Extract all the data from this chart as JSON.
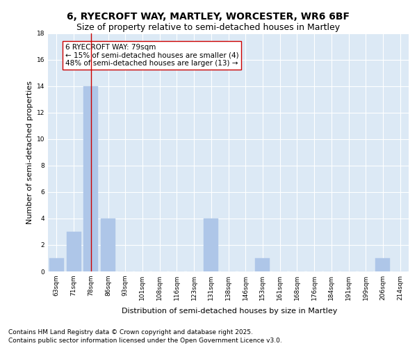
{
  "title1": "6, RYECROFT WAY, MARTLEY, WORCESTER, WR6 6BF",
  "title2": "Size of property relative to semi-detached houses in Martley",
  "xlabel": "Distribution of semi-detached houses by size in Martley",
  "ylabel": "Number of semi-detached properties",
  "categories": [
    "63sqm",
    "71sqm",
    "78sqm",
    "86sqm",
    "93sqm",
    "101sqm",
    "108sqm",
    "116sqm",
    "123sqm",
    "131sqm",
    "138sqm",
    "146sqm",
    "153sqm",
    "161sqm",
    "168sqm",
    "176sqm",
    "184sqm",
    "191sqm",
    "199sqm",
    "206sqm",
    "214sqm"
  ],
  "values": [
    1,
    3,
    14,
    4,
    0,
    0,
    0,
    0,
    0,
    4,
    0,
    0,
    1,
    0,
    0,
    0,
    0,
    0,
    0,
    1,
    0
  ],
  "bar_color": "#aec6e8",
  "bar_edge_color": "#aec6e8",
  "highlight_bar_index": 2,
  "highlight_line_color": "#cc0000",
  "annotation_text": "6 RYECROFT WAY: 79sqm\n← 15% of semi-detached houses are smaller (4)\n48% of semi-detached houses are larger (13) →",
  "annotation_box_color": "#ffffff",
  "annotation_box_edge_color": "#cc0000",
  "ylim": [
    0,
    18
  ],
  "yticks": [
    0,
    2,
    4,
    6,
    8,
    10,
    12,
    14,
    16,
    18
  ],
  "plot_background": "#dce9f5",
  "grid_color": "#ffffff",
  "footer_line1": "Contains HM Land Registry data © Crown copyright and database right 2025.",
  "footer_line2": "Contains public sector information licensed under the Open Government Licence v3.0.",
  "title1_fontsize": 10,
  "title2_fontsize": 9,
  "tick_fontsize": 6.5,
  "label_fontsize": 8,
  "annotation_fontsize": 7.5,
  "footer_fontsize": 6.5
}
